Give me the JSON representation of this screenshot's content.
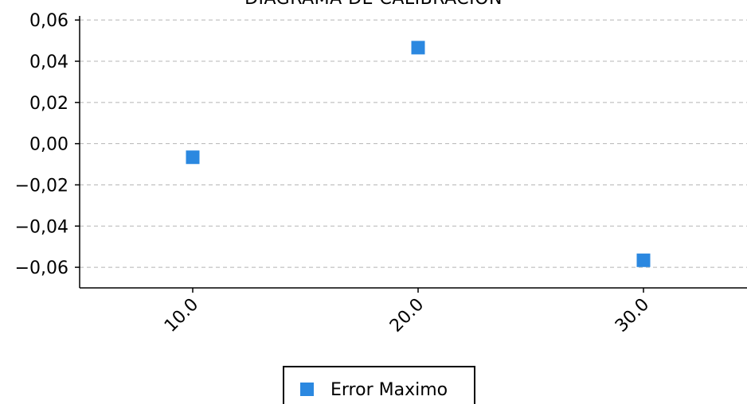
{
  "chart_data": {
    "type": "scatter",
    "title": "DIAGRAMA DE CALIBRACION",
    "xlabel": "",
    "ylabel": "",
    "categories": [
      "10.0",
      "20.0",
      "30.0"
    ],
    "series": [
      {
        "name": "Error Maximo",
        "values": [
          -0.0066,
          0.0466,
          -0.0566
        ],
        "color": "#2b88e0"
      }
    ],
    "ylim": [
      -0.07,
      0.062
    ],
    "yticks": [
      "0,06",
      "0,04",
      "0,02",
      "0,00",
      "−0,02",
      "−0,04",
      "−0,06"
    ],
    "ytick_values": [
      0.06,
      0.04,
      0.02,
      0.0,
      -0.02,
      -0.04,
      -0.06
    ],
    "grid": true,
    "legend": "bottom-center",
    "marker": "square-marker"
  }
}
